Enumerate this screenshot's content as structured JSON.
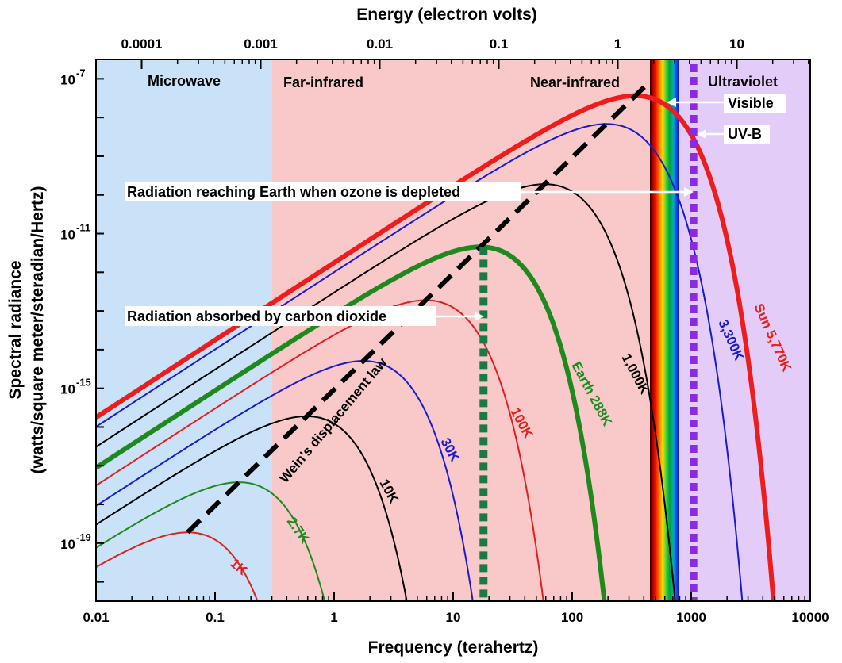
{
  "chart_data": {
    "type": "line",
    "title": "",
    "xlabel": "Frequency (terahertz)",
    "x2label": "Energy (electron volts)",
    "ylabel_line1": "Spectral radiance",
    "ylabel_line2": "(watts/square meter/steradian/Hertz)",
    "x_scale": "log",
    "y_scale": "log",
    "xlim": [
      0.01,
      10000
    ],
    "ylim_exponent": [
      -20.5,
      -6.5
    ],
    "x_ticks": [
      {
        "value": 0.01,
        "label": "0.01"
      },
      {
        "value": 0.1,
        "label": "0.1"
      },
      {
        "value": 1,
        "label": "1"
      },
      {
        "value": 10,
        "label": "10"
      },
      {
        "value": 100,
        "label": "100"
      },
      {
        "value": 1000,
        "label": "1000"
      },
      {
        "value": 10000,
        "label": "10000"
      }
    ],
    "x2_ticks": [
      {
        "value": 0.0001,
        "label": "0.0001"
      },
      {
        "value": 0.001,
        "label": "0.001"
      },
      {
        "value": 0.01,
        "label": "0.01"
      },
      {
        "value": 0.1,
        "label": "0.1"
      },
      {
        "value": 1,
        "label": "1"
      },
      {
        "value": 10,
        "label": "10"
      }
    ],
    "y_ticks": [
      {
        "exp": -7,
        "base": "10",
        "sup": "-7"
      },
      {
        "exp": -11,
        "base": "10",
        "sup": "-11"
      },
      {
        "exp": -15,
        "base": "10",
        "sup": "-15"
      },
      {
        "exp": -19,
        "base": "10",
        "sup": "-19"
      }
    ],
    "regions": [
      {
        "name": "Microwave",
        "from": 0.01,
        "to": 0.3,
        "color": "#c9e2f8"
      },
      {
        "name": "Far-infrared",
        "from": 0.3,
        "to": 100,
        "color": "#f9c9c9"
      },
      {
        "name": "Near-infrared",
        "from": 100,
        "to": 450,
        "color": "#f9c9c9"
      },
      {
        "name": "Ultraviolet",
        "from": 790,
        "to": 10000,
        "color": "#e3ccf7"
      }
    ],
    "visible_band": {
      "from": 450,
      "to": 790
    },
    "series": [
      {
        "name": "1K",
        "temperature_K": 1,
        "color": "#e02020",
        "width": 2
      },
      {
        "name": "2.7K",
        "temperature_K": 2.7,
        "color": "#1e8a1e",
        "width": 2
      },
      {
        "name": "10K",
        "temperature_K": 10,
        "color": "#000000",
        "width": 2
      },
      {
        "name": "30K",
        "temperature_K": 30,
        "color": "#1a1ad0",
        "width": 2
      },
      {
        "name": "100K",
        "temperature_K": 100,
        "color": "#e02020",
        "width": 2
      },
      {
        "name": "Earth 288K",
        "temperature_K": 288,
        "color": "#1e8a1e",
        "width": 6
      },
      {
        "name": "1,000K",
        "temperature_K": 1000,
        "color": "#000000",
        "width": 2
      },
      {
        "name": "3,300K",
        "temperature_K": 3300,
        "color": "#1a1ad0",
        "width": 2
      },
      {
        "name": "Sun 5,770K",
        "temperature_K": 5770,
        "color": "#ee1c1c",
        "width": 6
      }
    ],
    "wien_line": {
      "label": "Wein's displacement law",
      "color": "#000000"
    },
    "co2_line": {
      "frequency_THz": 18,
      "color": "#1a7a45"
    },
    "uvb_line": {
      "frequency_THz": 1050,
      "color": "#8a2be2"
    },
    "annotations": {
      "visible": "Visible",
      "uvb": "UV-B",
      "ozone": "Radiation reaching Earth when ozone is depleted",
      "co2": "Radiation absorbed by carbon dioxide"
    }
  }
}
